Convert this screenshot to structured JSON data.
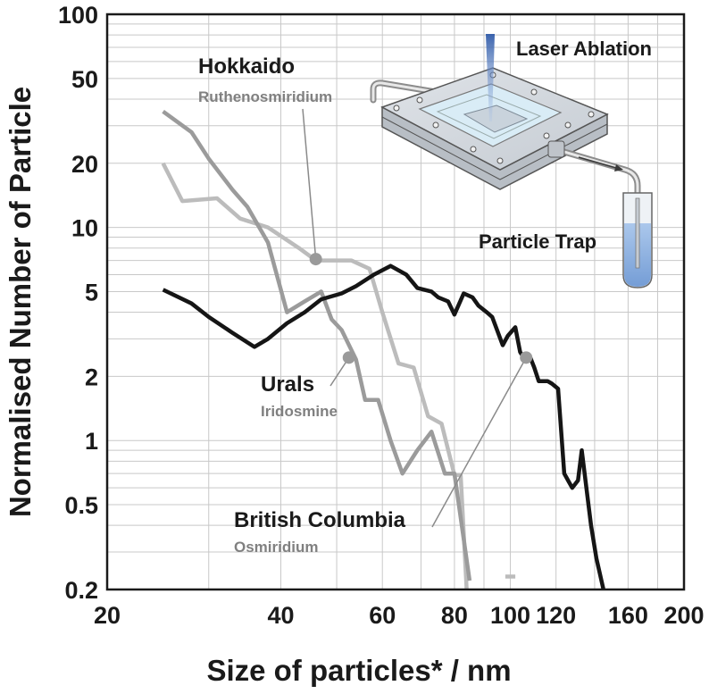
{
  "chart_data": {
    "type": "line",
    "title": "",
    "xlabel": "Size of particles* / nm",
    "ylabel": "Normalised Number of Particle",
    "x_scale": "log",
    "y_scale": "log",
    "xlim": [
      20,
      200
    ],
    "ylim": [
      0.2,
      100
    ],
    "x_ticks": [
      20,
      40,
      60,
      80,
      100,
      120,
      160,
      200
    ],
    "x_tick_labels": [
      "20",
      "40",
      "60",
      "80",
      "100",
      "120",
      "160",
      "200"
    ],
    "y_ticks": [
      0.2,
      0.5,
      1,
      2,
      5,
      10,
      20,
      50,
      100
    ],
    "y_tick_labels": [
      "0.2",
      "0.5",
      "1",
      "2",
      "5",
      "10",
      "20",
      "50",
      "100"
    ],
    "x_minor_grid": [
      30,
      50,
      70,
      90,
      140,
      180
    ],
    "y_minor_grid": [
      0.3,
      0.4,
      0.6,
      0.7,
      0.8,
      0.9,
      3,
      4,
      6,
      7,
      8,
      9,
      30,
      40,
      60,
      70,
      80,
      90
    ],
    "grid": true,
    "series": [
      {
        "name": "Hokkaido",
        "sub": "Ruthenosmiridium",
        "color": "#bcbcbc",
        "label_color": "#1a1a1a",
        "sub_color": "#808080",
        "x": [
          25,
          27,
          31,
          34,
          38,
          43,
          46,
          49,
          53,
          57,
          60,
          64,
          68,
          72,
          76,
          80,
          82,
          84
        ],
        "y": [
          20,
          13.3,
          13.7,
          11,
          10,
          8,
          7,
          7,
          7,
          6.4,
          4,
          2.3,
          2.2,
          1.3,
          1.2,
          0.69,
          0.69,
          0.2
        ],
        "marker": {
          "x": 46,
          "y": 7.1
        },
        "label_text_anchor": {
          "x": 34.2,
          "y": 43
        },
        "tail": {
          "x": [
            98,
            102
          ],
          "y": [
            0.23,
            0.23
          ]
        }
      },
      {
        "name": "Urals",
        "sub": "Iridosmine",
        "color": "#9b9b9b",
        "label_color": "#1a1a1a",
        "sub_color": "#808080",
        "x": [
          25,
          28,
          30,
          33,
          35,
          38,
          41,
          44,
          47,
          49,
          51,
          54,
          56,
          59,
          62,
          65,
          69,
          73,
          77,
          80,
          85
        ],
        "y": [
          35,
          28,
          21,
          15,
          12.5,
          8.5,
          4,
          4.5,
          5,
          3.7,
          3.3,
          2.4,
          1.55,
          1.55,
          1.0,
          0.7,
          0.9,
          1.1,
          0.7,
          0.7,
          0.22
        ],
        "marker": {
          "x": 52.5,
          "y": 2.45
        },
        "label_text_anchor": {
          "x": 47.6,
          "y": 1.05
        }
      },
      {
        "name": "British Columbia",
        "sub": "Osmiridium",
        "color": "#151515",
        "label_color": "#1a1a1a",
        "sub_color": "#808080",
        "x": [
          25,
          28,
          30,
          33,
          36,
          38,
          41,
          44,
          47,
          51,
          54,
          58,
          62,
          66,
          69,
          73,
          75,
          78,
          80,
          83,
          86,
          88,
          91,
          93,
          97,
          99,
          102,
          104,
          106,
          108,
          110,
          112,
          114,
          116,
          118,
          121,
          124,
          128,
          131,
          133,
          136,
          138,
          141,
          145
        ],
        "y": [
          5.1,
          4.4,
          3.8,
          3.2,
          2.75,
          3.0,
          3.55,
          4.0,
          4.6,
          4.9,
          5.3,
          6.0,
          6.6,
          6.0,
          5.2,
          5.0,
          4.7,
          4.5,
          3.9,
          4.9,
          4.7,
          4.3,
          4.0,
          3.8,
          2.8,
          3.1,
          3.4,
          2.6,
          2.4,
          2.5,
          2.2,
          1.9,
          1.9,
          1.9,
          1.85,
          1.75,
          0.7,
          0.6,
          0.65,
          0.9,
          0.55,
          0.4,
          0.28,
          0.2
        ],
        "marker": {
          "x": 106.5,
          "y": 2.45
        },
        "label_text_anchor": {
          "x": 28.6,
          "y": 0.23
        }
      }
    ],
    "inset": {
      "laser_label": "Laser Ablation",
      "trap_label": "Particle Trap"
    }
  }
}
